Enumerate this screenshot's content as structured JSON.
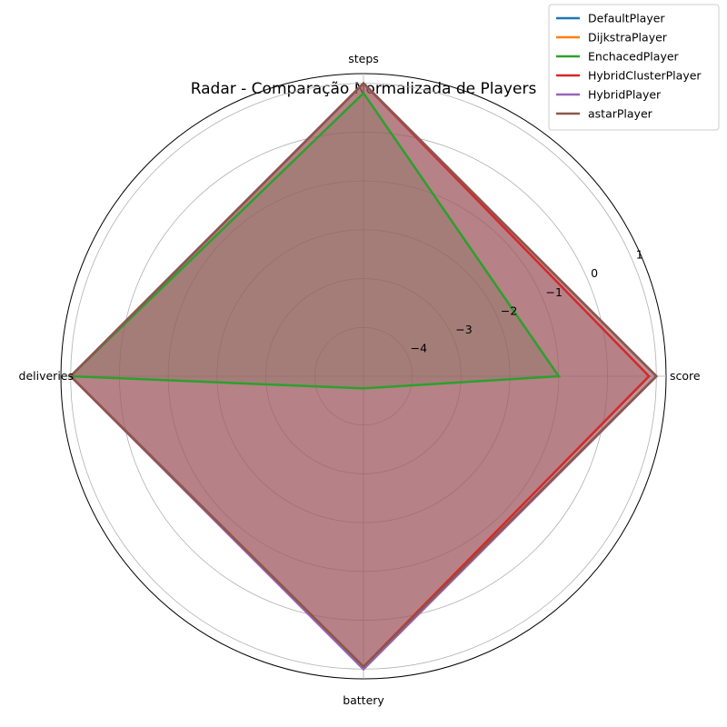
{
  "chart_data": {
    "type": "radar",
    "title": "Radar - Comparação Normalizada de Players",
    "axes": [
      "score",
      "steps",
      "deliveries",
      "battery"
    ],
    "r_ticks": [
      -4,
      -3,
      -2,
      -1,
      0,
      1
    ],
    "r_tick_labels": [
      "−4",
      "−3",
      "−2",
      "−1",
      "0",
      "1"
    ],
    "r_range": [
      -5,
      1.2
    ],
    "grid": true,
    "legend_position": "top-right",
    "series": [
      {
        "name": "DefaultPlayer",
        "color": "#1f77b4",
        "values": [
          1.0,
          1.0,
          1.0,
          1.0
        ]
      },
      {
        "name": "DijkstraPlayer",
        "color": "#ff7f0e",
        "values": [
          1.0,
          1.0,
          1.0,
          1.0
        ]
      },
      {
        "name": "EnchacedPlayer",
        "color": "#2ca02c",
        "values": [
          -1.0,
          0.8,
          1.0,
          -4.75
        ]
      },
      {
        "name": "HybridClusterPlayer",
        "color": "#d62728",
        "values": [
          0.85,
          1.0,
          1.0,
          0.95
        ]
      },
      {
        "name": "HybridPlayer",
        "color": "#9467bd",
        "values": [
          1.0,
          1.0,
          1.0,
          1.0
        ]
      },
      {
        "name": "astarPlayer",
        "color": "#8c564b",
        "values": [
          1.0,
          1.0,
          1.0,
          0.95
        ]
      }
    ]
  }
}
